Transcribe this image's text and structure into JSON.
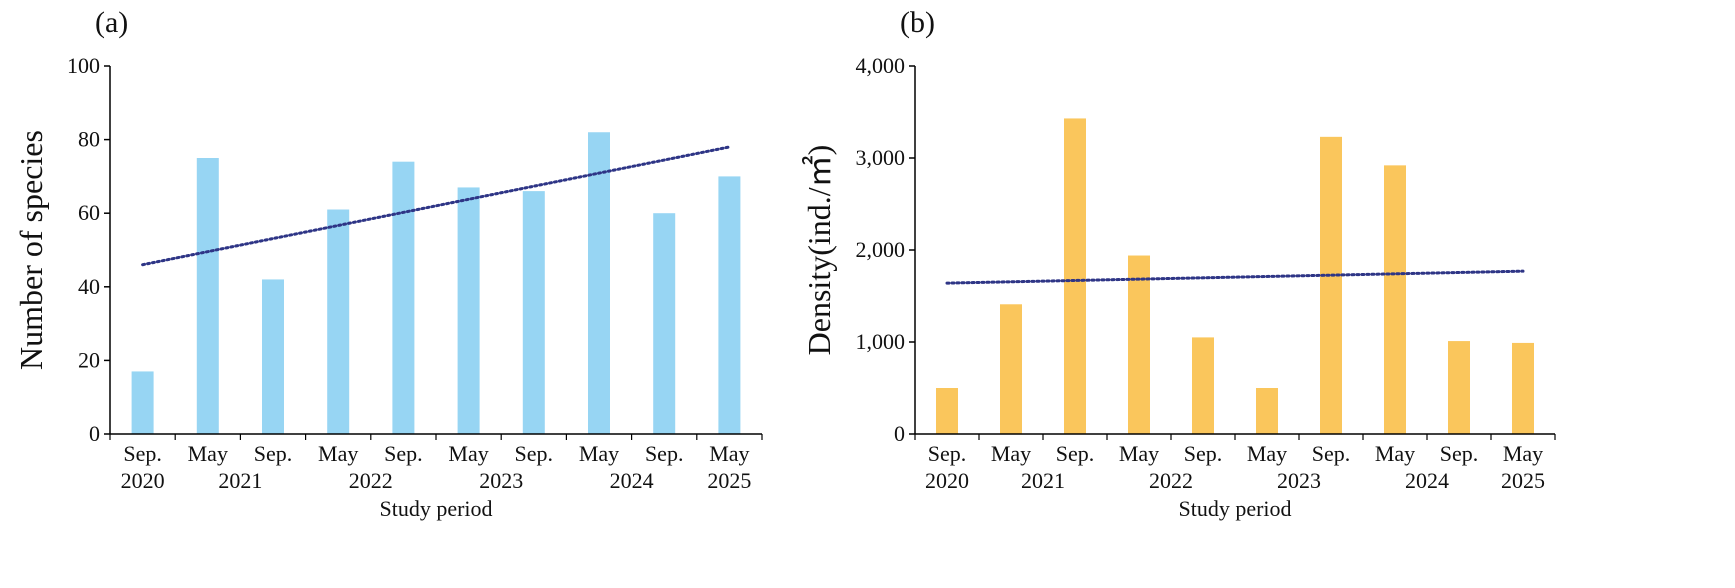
{
  "chart_data": [
    {
      "type": "bar",
      "panel_label": "(a)",
      "categories": [
        "Sep.",
        "May",
        "Sep.",
        "May",
        "Sep.",
        "May",
        "Sep.",
        "May",
        "Sep.",
        "May"
      ],
      "year_labels": [
        "2020",
        "2021",
        "2022",
        "2023",
        "2024",
        "2025"
      ],
      "values": [
        17,
        75,
        42,
        61,
        74,
        67,
        66,
        82,
        60,
        70
      ],
      "trendline": {
        "style": "dotted",
        "start": 46,
        "end": 78
      },
      "ylim": [
        0,
        100
      ],
      "yticks": [
        0,
        20,
        40,
        60,
        80,
        100
      ],
      "ytick_labels": [
        "0",
        "20",
        "40",
        "60",
        "80",
        "100"
      ],
      "xlabel": "Study period",
      "ylabel": "Number of species",
      "bar_color": "#97D5F3",
      "trend_color": "#2E3586",
      "grid": false
    },
    {
      "type": "bar",
      "panel_label": "(b)",
      "categories": [
        "Sep.",
        "May",
        "Sep.",
        "May",
        "Sep.",
        "May",
        "Sep.",
        "May",
        "Sep.",
        "May"
      ],
      "year_labels": [
        "2020",
        "2021",
        "2022",
        "2023",
        "2024",
        "2025"
      ],
      "values": [
        500,
        1410,
        3430,
        1940,
        1050,
        500,
        3230,
        2920,
        1010,
        990
      ],
      "trendline": {
        "style": "dotted",
        "start": 1640,
        "end": 1770
      },
      "ylim": [
        0,
        4000
      ],
      "yticks": [
        0,
        1000,
        2000,
        3000,
        4000
      ],
      "ytick_labels": [
        "0",
        "1,000",
        "2,000",
        "3,000",
        "4,000"
      ],
      "xlabel": "Study period",
      "ylabel": "Density(ind./㎡)",
      "bar_color": "#FAC65C",
      "trend_color": "#2E3586",
      "grid": false
    }
  ]
}
